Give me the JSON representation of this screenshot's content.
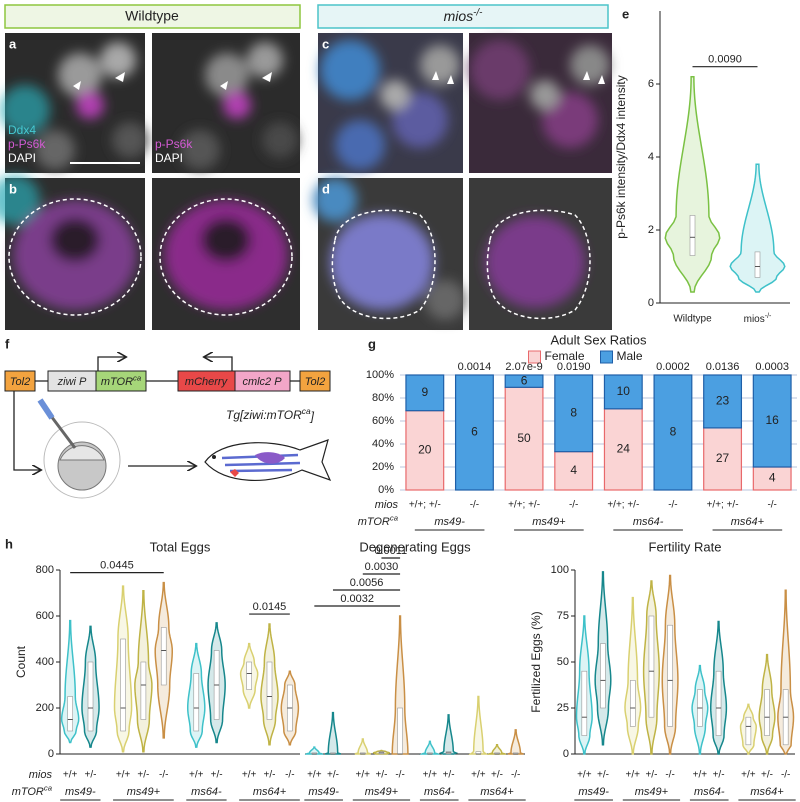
{
  "headers": {
    "wildtype": "Wildtype",
    "mutant": {
      "base": "mios",
      "sup": "-/-"
    }
  },
  "panel_labels": [
    "a",
    "b",
    "c",
    "d",
    "e",
    "f",
    "g",
    "h"
  ],
  "stain_labels": {
    "merge": [
      "Ddx4",
      "p-Ps6k",
      "DAPI"
    ],
    "single": [
      "p-Ps6k",
      "DAPI"
    ]
  },
  "construct": [
    {
      "label": "Tol2"
    },
    {
      "label": "ziwi P"
    },
    {
      "label": {
        "base": "mTOR",
        "sup": "ca"
      }
    },
    {
      "label": "mCherry"
    },
    {
      "label": "cmlc2 P"
    },
    {
      "label": "Tol2"
    }
  ],
  "transgene": {
    "base": "Tg[ziwi:mTOR",
    "sup": "ca",
    "tail": "]"
  },
  "chart_data": [
    {
      "type": "violin",
      "ylabel": "p-Ps6k intensity/Ddx4 intensity",
      "categories": [
        "Wildtype",
        {
          "base": "mios",
          "sup": "-/-"
        }
      ],
      "colors": [
        "#7ac143",
        "#3ec1c9"
      ],
      "violins": [
        {
          "min": 0.3,
          "q1": 1.3,
          "median": 1.8,
          "q3": 2.4,
          "max": 6.2
        },
        {
          "min": 0.3,
          "q1": 0.7,
          "median": 1.0,
          "q3": 1.4,
          "max": 3.8
        }
      ],
      "ylim": [
        0,
        8
      ],
      "yticks": [
        0,
        2,
        4,
        6
      ],
      "brackets": [
        {
          "label": "0.0090",
          "from": 0,
          "to": 1
        }
      ]
    },
    {
      "type": "stacked_percent_bar",
      "title": "Adult Sex Ratios",
      "row_labels": {
        "mios": "mios",
        "mtor": {
          "base": "mTOR",
          "sup": "ca"
        }
      },
      "categories": [
        "+/+; +/-",
        "-/-",
        "+/+; +/-",
        "-/-",
        "+/+; +/-",
        "-/-",
        "+/+; +/-",
        "-/-"
      ],
      "groups": [
        {
          "label": "ms49-",
          "count": 2
        },
        {
          "label": "ms49+",
          "count": 2
        },
        {
          "label": "ms64-",
          "count": 2
        },
        {
          "label": "ms64+",
          "count": 2
        }
      ],
      "series": [
        {
          "name": "Female",
          "color": "#fad4d4",
          "border": "#e8696b",
          "values": [
            20,
            0,
            50,
            4,
            24,
            0,
            27,
            4
          ]
        },
        {
          "name": "Male",
          "color": "#4b9fe1",
          "border": "#1f5fa8",
          "values": [
            9,
            6,
            6,
            8,
            10,
            8,
            23,
            16
          ]
        }
      ],
      "annotations": [
        null,
        "0.0014",
        "2.07e-9",
        "0.0190",
        null,
        "0.0002",
        "0.0136",
        "0.0003"
      ],
      "ylim": [
        0,
        100
      ],
      "yticks": [
        {
          "value": 0,
          "label": "0%"
        },
        {
          "value": 20,
          "label": "20%"
        },
        {
          "value": 40,
          "label": "40%"
        },
        {
          "value": 60,
          "label": "60%"
        },
        {
          "value": 80,
          "label": "80%"
        },
        {
          "value": 100,
          "label": "100%"
        }
      ],
      "grid": true,
      "legend": "top"
    },
    {
      "type": "violin",
      "title": "Total Eggs",
      "ylabel": "Count",
      "row_labels": {
        "mios": "mios",
        "mtor": {
          "base": "mTOR",
          "sup": "ca"
        }
      },
      "categories": [
        "+/+",
        "+/-",
        "+/+",
        "+/-",
        "-/-",
        "+/+",
        "+/-",
        "+/+",
        "+/-",
        "-/-"
      ],
      "groups": [
        {
          "label": "ms49-",
          "count": 2
        },
        {
          "label": "ms49+",
          "count": 3
        },
        {
          "label": "ms64-",
          "count": 2
        },
        {
          "label": "ms64+",
          "count": 3
        }
      ],
      "colors": [
        "#3ec1c9",
        "#16878c",
        "#d9d070",
        "#bfb345",
        "#c98f45",
        "#3ec1c9",
        "#16878c",
        "#d9d070",
        "#bfb345",
        "#c98f45"
      ],
      "violins": [
        {
          "min": 50,
          "q1": 100,
          "median": 150,
          "q3": 250,
          "max": 580
        },
        {
          "min": 30,
          "q1": 100,
          "median": 200,
          "q3": 400,
          "max": 555
        },
        {
          "min": 10,
          "q1": 100,
          "median": 200,
          "q3": 500,
          "max": 730
        },
        {
          "min": 10,
          "q1": 150,
          "median": 300,
          "q3": 400,
          "max": 710
        },
        {
          "min": 70,
          "q1": 300,
          "median": 450,
          "q3": 550,
          "max": 745
        },
        {
          "min": 30,
          "q1": 100,
          "median": 200,
          "q3": 350,
          "max": 480
        },
        {
          "min": 50,
          "q1": 150,
          "median": 300,
          "q3": 450,
          "max": 570
        },
        {
          "min": 200,
          "q1": 280,
          "median": 350,
          "q3": 400,
          "max": 480
        },
        {
          "min": 40,
          "q1": 150,
          "median": 250,
          "q3": 400,
          "max": 565
        },
        {
          "min": 40,
          "q1": 100,
          "median": 200,
          "q3": 300,
          "max": 360
        }
      ],
      "ylim": [
        0,
        800
      ],
      "yticks": [
        0,
        200,
        400,
        600,
        800
      ],
      "brackets": [
        {
          "label": "0.0445",
          "from": 0,
          "to": 4
        },
        {
          "label": "0.0145",
          "from": 7,
          "to": 9
        }
      ]
    },
    {
      "type": "violin",
      "title": "Degenerating Eggs",
      "categories": [
        "+/+",
        "+/-",
        "+/+",
        "+/-",
        "-/-",
        "+/+",
        "+/-",
        "+/+",
        "+/-",
        "-/-"
      ],
      "groups": [
        {
          "label": "ms49-",
          "count": 2
        },
        {
          "label": "ms49+",
          "count": 3
        },
        {
          "label": "ms64-",
          "count": 2
        },
        {
          "label": "ms64+",
          "count": 3
        }
      ],
      "colors": [
        "#3ec1c9",
        "#16878c",
        "#d9d070",
        "#bfb345",
        "#c98f45",
        "#3ec1c9",
        "#16878c",
        "#d9d070",
        "#bfb345",
        "#c98f45"
      ],
      "violins": [
        {
          "min": 0,
          "q1": 0,
          "median": 0,
          "q3": 5,
          "max": 30
        },
        {
          "min": 0,
          "q1": 0,
          "median": 0,
          "q3": 5,
          "max": 180
        },
        {
          "min": 0,
          "q1": 0,
          "median": 0,
          "q3": 5,
          "max": 65
        },
        {
          "min": 0,
          "q1": 0,
          "median": 5,
          "q3": 10,
          "max": 15
        },
        {
          "min": 0,
          "q1": 0,
          "median": 0,
          "q3": 200,
          "max": 600
        },
        {
          "min": 0,
          "q1": 0,
          "median": 0,
          "q3": 5,
          "max": 55
        },
        {
          "min": 0,
          "q1": 0,
          "median": 5,
          "q3": 10,
          "max": 170
        },
        {
          "min": 0,
          "q1": 0,
          "median": 0,
          "q3": 10,
          "max": 250
        },
        {
          "min": 0,
          "q1": 0,
          "median": 0,
          "q3": 5,
          "max": 40
        },
        {
          "min": 0,
          "q1": 0,
          "median": 0,
          "q3": 5,
          "max": 105
        }
      ],
      "ylim": [
        0,
        800
      ],
      "brackets": [
        {
          "label": "0.0032",
          "from": 0,
          "to": 4
        },
        {
          "label": "0.0056",
          "from": 1,
          "to": 4
        },
        {
          "label": "0.0030",
          "from": 2,
          "to": 4
        },
        {
          "label": "0.0011",
          "from": 3,
          "to": 4
        }
      ]
    },
    {
      "type": "violin",
      "title": "Fertility Rate",
      "ylabel": "Fertilized Eggs (%)",
      "categories": [
        "+/+",
        "+/-",
        "+/+",
        "+/-",
        "-/-",
        "+/+",
        "+/-",
        "+/+",
        "+/-",
        "-/-"
      ],
      "groups": [
        {
          "label": "ms49-",
          "count": 2
        },
        {
          "label": "ms49+",
          "count": 3
        },
        {
          "label": "ms64-",
          "count": 2
        },
        {
          "label": "ms64+",
          "count": 3
        }
      ],
      "colors": [
        "#3ec1c9",
        "#16878c",
        "#d9d070",
        "#bfb345",
        "#c98f45",
        "#3ec1c9",
        "#16878c",
        "#d9d070",
        "#bfb345",
        "#c98f45"
      ],
      "violins": [
        {
          "min": 0,
          "q1": 10,
          "median": 20,
          "q3": 45,
          "max": 75
        },
        {
          "min": 5,
          "q1": 25,
          "median": 40,
          "q3": 60,
          "max": 99
        },
        {
          "min": 0,
          "q1": 15,
          "median": 25,
          "q3": 40,
          "max": 85
        },
        {
          "min": 0,
          "q1": 20,
          "median": 45,
          "q3": 75,
          "max": 94
        },
        {
          "min": 0,
          "q1": 15,
          "median": 40,
          "q3": 70,
          "max": 97
        },
        {
          "min": 0,
          "q1": 15,
          "median": 25,
          "q3": 35,
          "max": 48
        },
        {
          "min": 0,
          "q1": 10,
          "median": 25,
          "q3": 45,
          "max": 72
        },
        {
          "min": 0,
          "q1": 5,
          "median": 15,
          "q3": 20,
          "max": 27
        },
        {
          "min": 0,
          "q1": 10,
          "median": 20,
          "q3": 35,
          "max": 54
        },
        {
          "min": 0,
          "q1": 5,
          "median": 20,
          "q3": 35,
          "max": 89
        }
      ],
      "ylim": [
        0,
        100
      ],
      "yticks": [
        0,
        25,
        50,
        75,
        100
      ]
    }
  ]
}
